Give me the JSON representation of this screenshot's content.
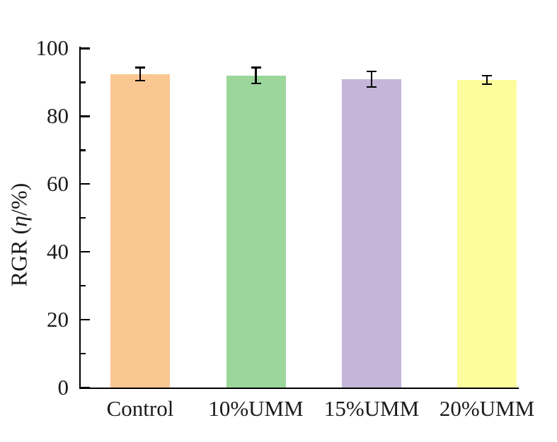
{
  "figure": {
    "background": "#ffffff",
    "axis_color": "#000000",
    "text_color": "#1a1a1a"
  },
  "chart_data": {
    "type": "bar",
    "title": "",
    "xlabel": "",
    "ylabel": "RGR (η/%)",
    "ylabel_parts": {
      "prefix": "RGR (",
      "eta": "η",
      "suffix": "/%)"
    },
    "categories": [
      "Control",
      "10%UMM",
      "15%UMM",
      "20%UMM"
    ],
    "values": [
      92.4,
      92.0,
      90.9,
      90.7
    ],
    "errors": [
      1.9,
      2.3,
      2.3,
      1.2
    ],
    "bar_colors": [
      "#FAC691",
      "#9BD69B",
      "#C4B5D9",
      "#FDFD9E"
    ],
    "error_bar_color": "#000000",
    "ylim": [
      0,
      100.5
    ],
    "y_major_ticks": [
      0,
      20,
      40,
      60,
      80,
      100
    ],
    "y_minor_ticks": [
      10,
      30,
      50,
      70,
      90
    ],
    "grid": false,
    "legend": null
  }
}
